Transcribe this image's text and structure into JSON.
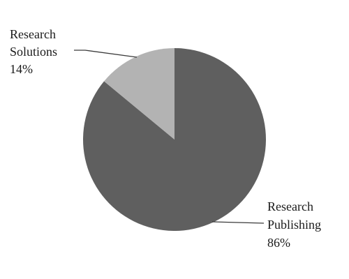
{
  "chart_data": {
    "type": "pie",
    "slices": [
      {
        "name_lines": [
          "Research",
          "Publishing"
        ],
        "percent_label": "86%",
        "value": 86,
        "color": "#5f5f5f"
      },
      {
        "name_lines": [
          "Research",
          "Solutions"
        ],
        "percent_label": "14%",
        "value": 14,
        "color": "#b3b3b3"
      }
    ],
    "start_angle_deg": 0,
    "direction": "clockwise",
    "legend": "none",
    "leader_lines": true
  }
}
